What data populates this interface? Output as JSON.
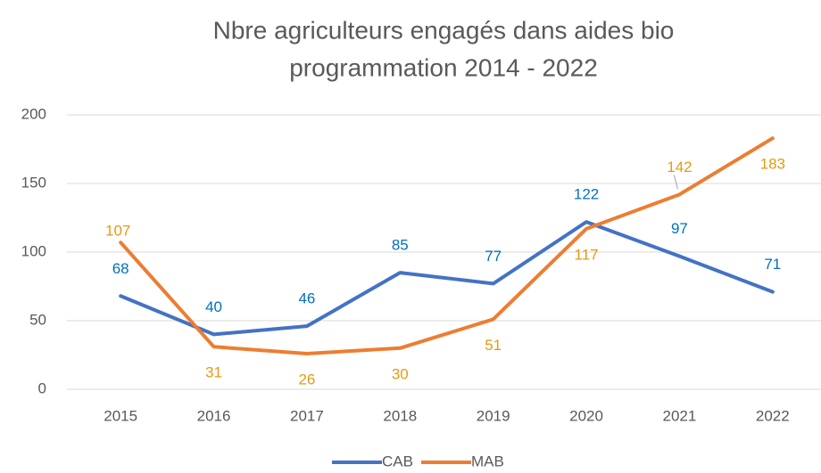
{
  "chart_data": {
    "type": "line",
    "title": [
      "Nbre agriculteurs engagés dans aides bio",
      "programmation 2014 - 2022"
    ],
    "categories": [
      "2015",
      "2016",
      "2017",
      "2018",
      "2019",
      "2020",
      "2021",
      "2022"
    ],
    "series": [
      {
        "name": "CAB",
        "color": "#4472c4",
        "label_color": "#0070c0",
        "values": [
          68,
          40,
          46,
          85,
          77,
          122,
          97,
          71
        ]
      },
      {
        "name": "MAB",
        "color": "#ed7d31",
        "label_color": "#e69a12",
        "values": [
          107,
          31,
          26,
          30,
          51,
          117,
          142,
          183
        ]
      }
    ],
    "ylim": [
      0,
      200
    ],
    "yticks": [
      0,
      50,
      100,
      150,
      200
    ],
    "grid": true,
    "legend": "bottom"
  }
}
